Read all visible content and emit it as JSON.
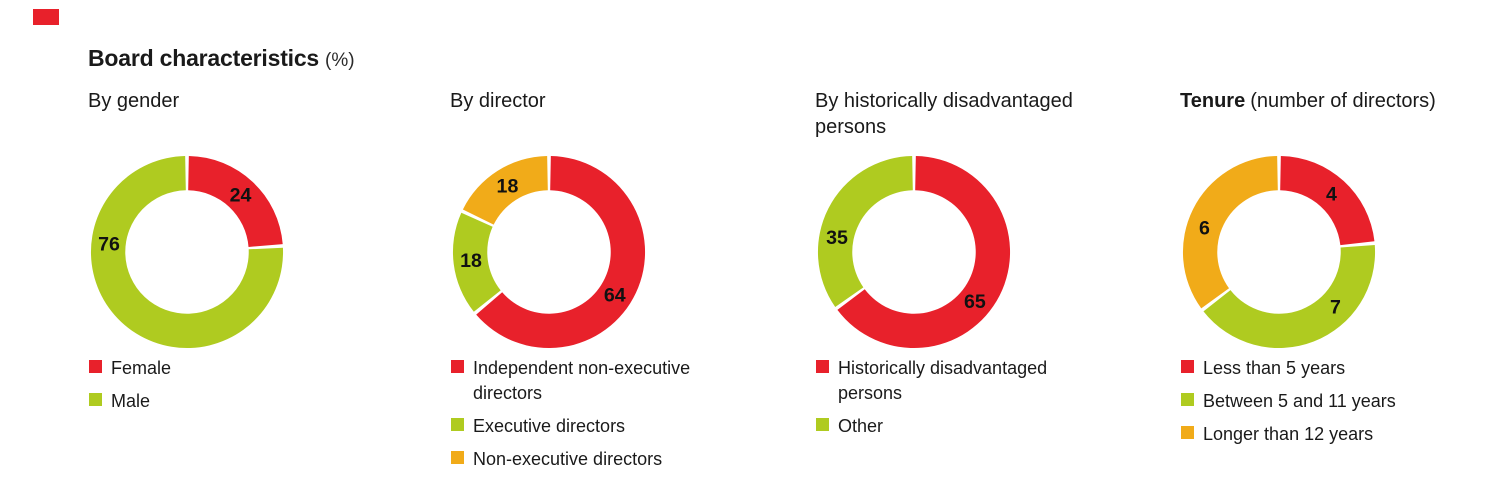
{
  "header": {
    "title": "Board characteristics",
    "unit": "(%)"
  },
  "colors": {
    "red": "#e8212b",
    "green": "#afcb20",
    "orange": "#f1ab19",
    "label_text": "#111111",
    "corner_tab": "#e8212b"
  },
  "chart_data": [
    {
      "type": "donut",
      "title": "By gender",
      "title_suffix": "",
      "title_bold": false,
      "legend_position": "bottom",
      "slices": [
        {
          "label": "Female",
          "value": 24,
          "color": "red",
          "label_angle": 43
        },
        {
          "label": "Male",
          "value": 76,
          "color": "green",
          "label_angle": 276
        }
      ]
    },
    {
      "type": "donut",
      "title": "By director",
      "title_suffix": "",
      "title_bold": false,
      "legend_position": "bottom",
      "slices": [
        {
          "label": "Independent non-executive directors",
          "value": 64,
          "color": "red",
          "label_angle": 123
        },
        {
          "label": "Executive directors",
          "value": 18,
          "color": "green",
          "label_angle": 264
        },
        {
          "label": "Non-executive directors",
          "value": 18,
          "color": "orange",
          "label_angle": 328
        }
      ]
    },
    {
      "type": "donut",
      "title": "By historically disadvantaged persons",
      "title_suffix": "",
      "title_bold": false,
      "legend_position": "bottom",
      "slices": [
        {
          "label": "Historically disadvantaged persons",
          "value": 65,
          "color": "red",
          "label_angle": 129
        },
        {
          "label": "Other",
          "value": 35,
          "color": "green",
          "label_angle": 281
        }
      ]
    },
    {
      "type": "donut",
      "title": "Tenure",
      "title_suffix": "(number of directors)",
      "title_bold": true,
      "legend_position": "bottom",
      "slices": [
        {
          "label": "Less than 5 years",
          "value": 4,
          "color": "red",
          "label_angle": 42
        },
        {
          "label": "Between 5 and 11 years",
          "value": 7,
          "color": "green",
          "label_angle": 134
        },
        {
          "label": "Longer than 12 years",
          "value": 6,
          "color": "orange",
          "label_angle": 288
        }
      ]
    }
  ]
}
